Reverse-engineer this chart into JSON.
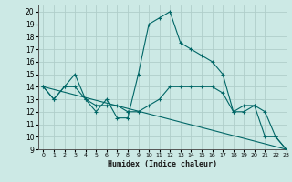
{
  "title": "",
  "xlabel": "Humidex (Indice chaleur)",
  "xlim": [
    -0.5,
    23
  ],
  "ylim": [
    9,
    20.5
  ],
  "yticks": [
    9,
    10,
    11,
    12,
    13,
    14,
    15,
    16,
    17,
    18,
    19,
    20
  ],
  "xticks": [
    0,
    1,
    2,
    3,
    4,
    5,
    6,
    7,
    8,
    9,
    10,
    11,
    12,
    13,
    14,
    15,
    16,
    17,
    18,
    19,
    20,
    21,
    22,
    23
  ],
  "bg_color": "#cce9e5",
  "grid_color": "#b0ceca",
  "line_color": "#006666",
  "series": {
    "line1_x": [
      0,
      1,
      2,
      3,
      4,
      5,
      6,
      7,
      8,
      9,
      10,
      11,
      12,
      13,
      14,
      15,
      16,
      17,
      18,
      19,
      20,
      21,
      22,
      23
    ],
    "line1_y": [
      14,
      13,
      14,
      15,
      13,
      12,
      13,
      11.5,
      11.5,
      15,
      19,
      19.5,
      20,
      17.5,
      17,
      16.5,
      16,
      15,
      12,
      12,
      12.5,
      10,
      10,
      9
    ],
    "line2_x": [
      0,
      1,
      2,
      3,
      4,
      5,
      6,
      7,
      8,
      9,
      10,
      11,
      12,
      13,
      14,
      15,
      16,
      17,
      18,
      19,
      20,
      21,
      22,
      23
    ],
    "line2_y": [
      14,
      13,
      14,
      14,
      13,
      12.5,
      12.5,
      12.5,
      12,
      12,
      12.5,
      13,
      14,
      14,
      14,
      14,
      14,
      13.5,
      12,
      12.5,
      12.5,
      12,
      10,
      9
    ],
    "line3_x": [
      0,
      23
    ],
    "line3_y": [
      14,
      9
    ]
  }
}
